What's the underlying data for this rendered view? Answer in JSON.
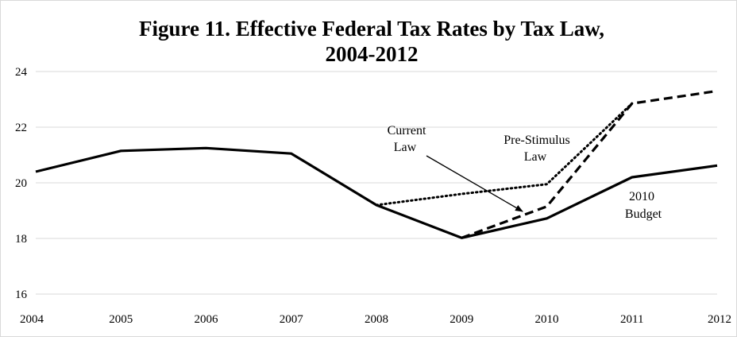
{
  "chart_data": {
    "type": "line",
    "title_line1": "Figure 11. Effective Federal Tax Rates by Tax Law,",
    "title_line2": "2004-2012",
    "xlabel": "",
    "ylabel": "",
    "x": [
      2004,
      2005,
      2006,
      2007,
      2008,
      2009,
      2010,
      2011,
      2012
    ],
    "xlim": [
      2004,
      2012
    ],
    "ylim": [
      16,
      24
    ],
    "yticks": [
      16,
      18,
      20,
      22,
      24
    ],
    "grid": "horizontal",
    "legend": "none",
    "series": [
      {
        "name": "2010 Budget",
        "style": "solid",
        "x": [
          2004,
          2005,
          2006,
          2007,
          2008,
          2009,
          2010,
          2011,
          2012
        ],
        "values": [
          20.4,
          21.15,
          21.25,
          21.05,
          19.2,
          18.02,
          18.72,
          20.2,
          20.62
        ]
      },
      {
        "name": "Current Law",
        "style": "dashed",
        "x": [
          2009,
          2010,
          2011,
          2012
        ],
        "values": [
          18.02,
          19.15,
          22.85,
          23.3
        ]
      },
      {
        "name": "Pre-Stimulus Law",
        "style": "dotted",
        "x": [
          2008,
          2009,
          2010,
          2011
        ],
        "values": [
          19.2,
          19.6,
          19.95,
          22.85
        ]
      }
    ],
    "annotations": {
      "current_law_line1": "Current",
      "current_law_line2": "Law",
      "pre_stimulus_line1": "Pre-Stimulus",
      "pre_stimulus_line2": "Law",
      "budget_line1": "2010",
      "budget_line2": "Budget"
    }
  }
}
